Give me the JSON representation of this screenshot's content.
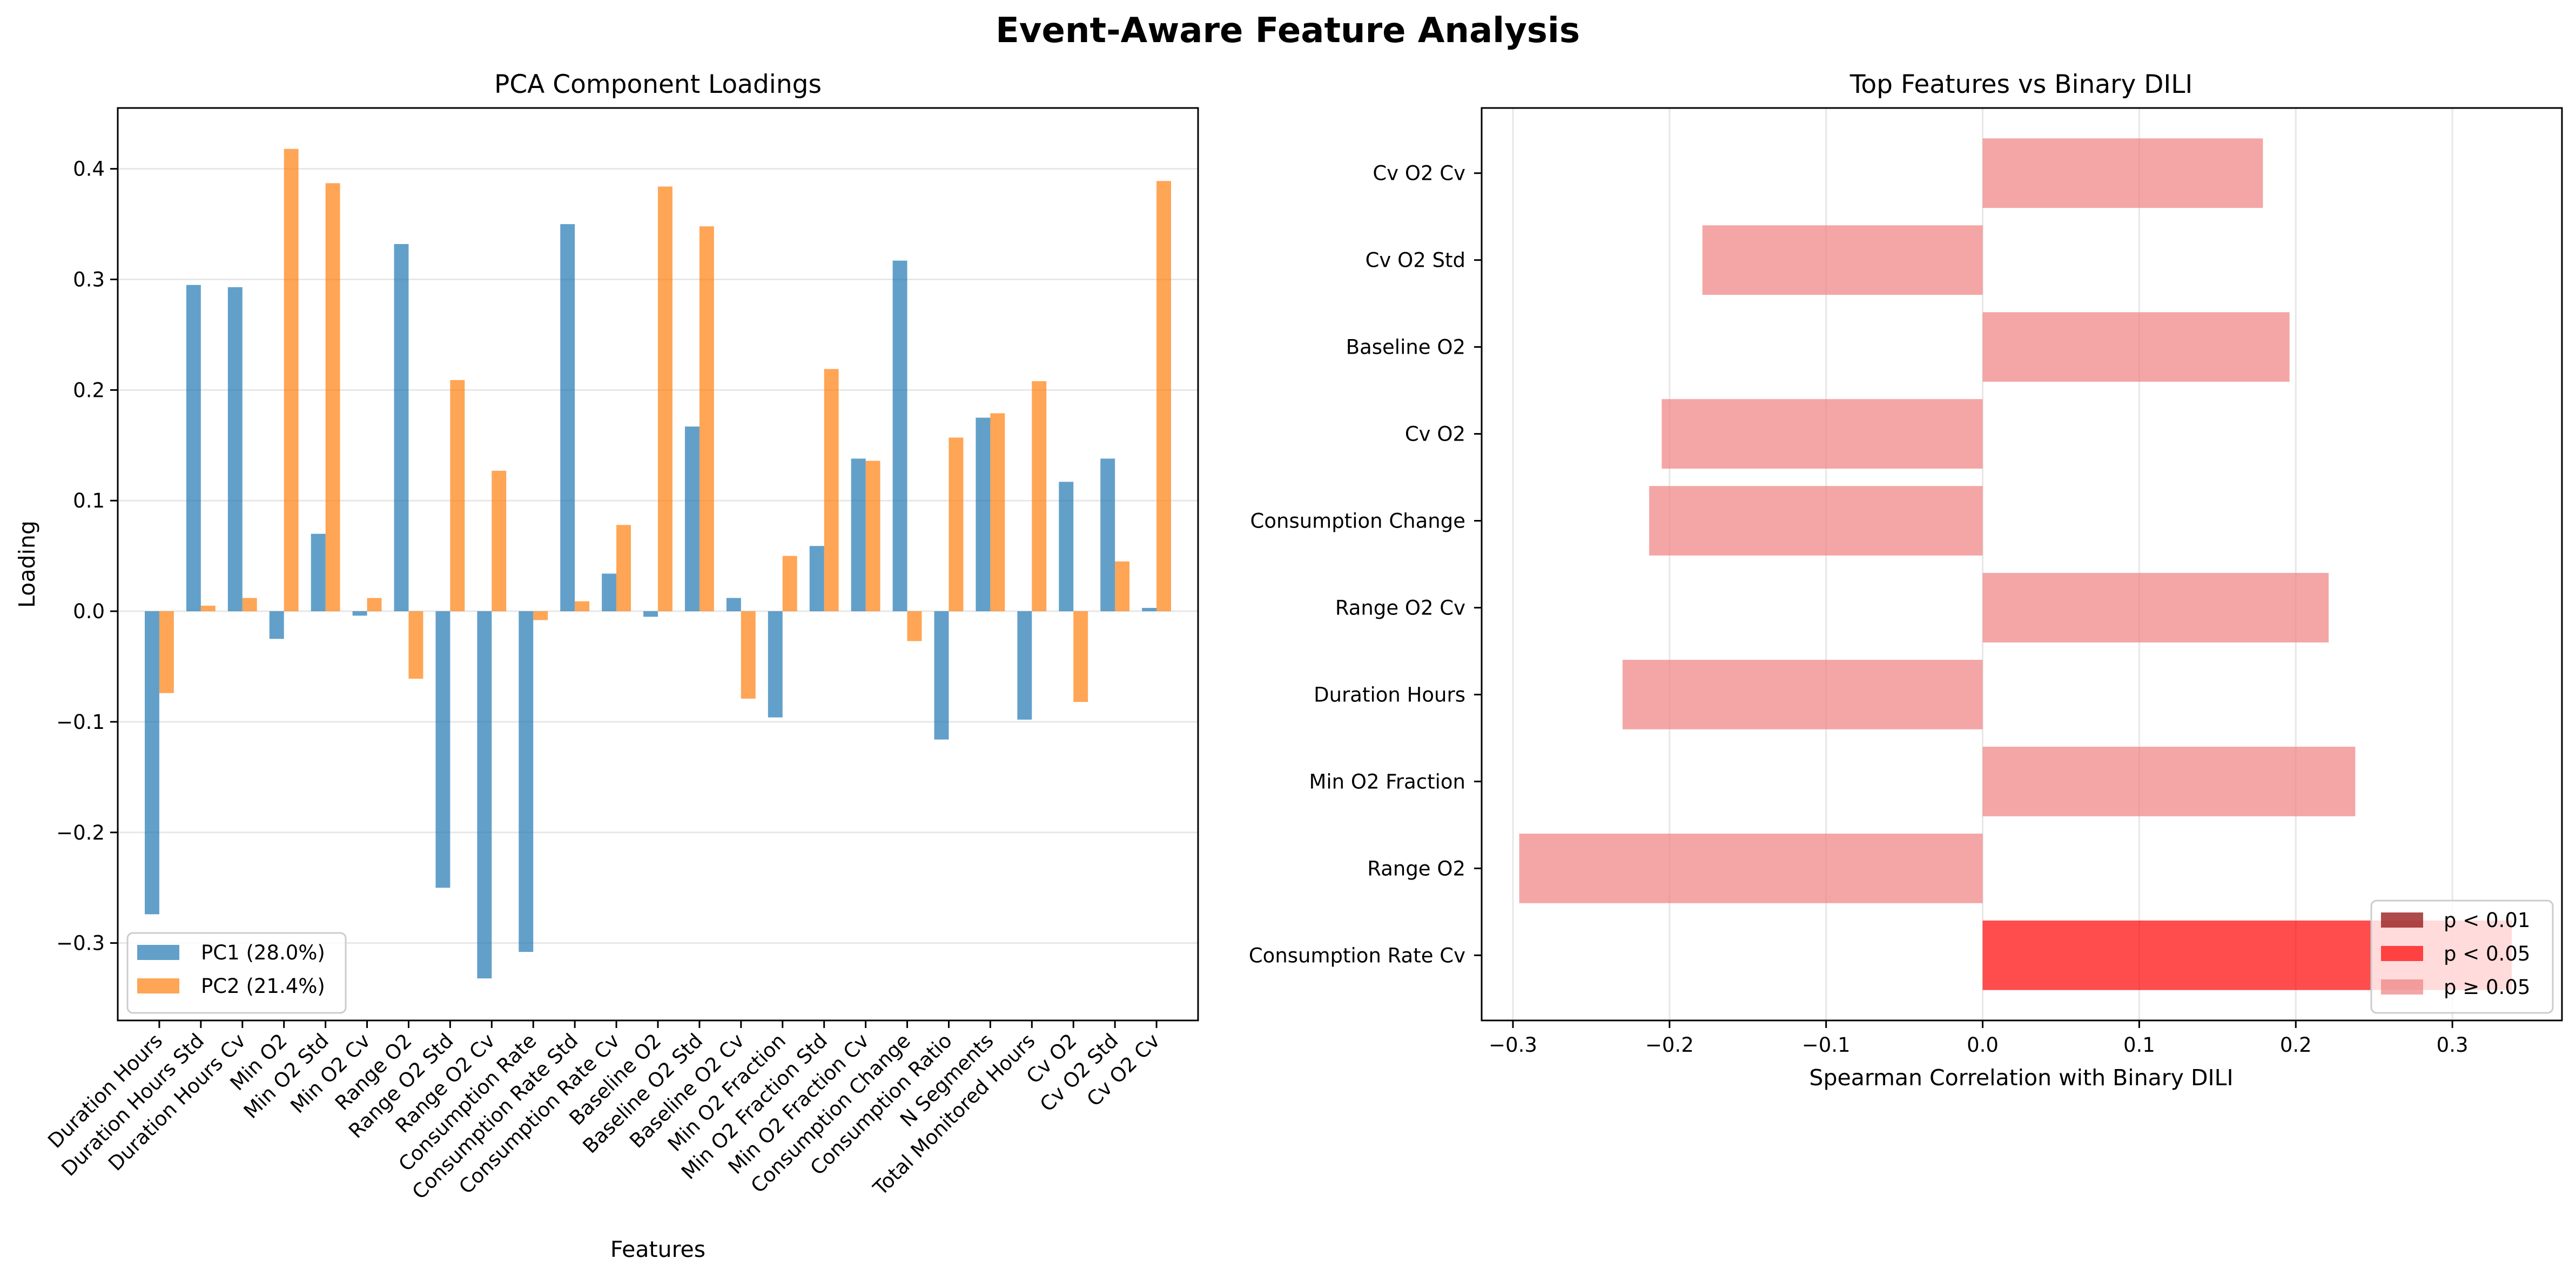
{
  "figure": {
    "title": "Event-Aware Feature Analysis"
  },
  "chart_data": [
    {
      "type": "bar",
      "title": "PCA Component Loadings",
      "xlabel": "Features",
      "ylabel": "Loading",
      "ylim": [
        -0.37,
        0.455
      ],
      "yticks": [
        -0.3,
        -0.2,
        -0.1,
        0.0,
        0.1,
        0.2,
        0.3,
        0.4
      ],
      "ytick_labels": [
        "−0.3",
        "−0.2",
        "−0.1",
        "0.0",
        "0.1",
        "0.2",
        "0.3",
        "0.4"
      ],
      "grid": "horizontal",
      "legend_position": "lower-left",
      "categories": [
        "Duration Hours",
        "Duration Hours Std",
        "Duration Hours Cv",
        "Min O2",
        "Min O2 Std",
        "Min O2 Cv",
        "Range O2",
        "Range O2 Std",
        "Range O2 Cv",
        "Consumption Rate",
        "Consumption Rate Std",
        "Consumption Rate Cv",
        "Baseline O2",
        "Baseline O2 Std",
        "Baseline O2 Cv",
        "Min O2 Fraction",
        "Min O2 Fraction Std",
        "Min O2 Fraction Cv",
        "Consumption Change",
        "Consumption Ratio",
        "N Segments",
        "Total Monitored Hours",
        "Cv O2",
        "Cv O2 Std",
        "Cv O2 Cv"
      ],
      "series": [
        {
          "name": "PC1 (28.0%)",
          "color": "#1f77b4",
          "values": [
            -0.274,
            0.295,
            0.293,
            -0.025,
            0.07,
            -0.004,
            0.332,
            -0.25,
            -0.332,
            -0.308,
            0.35,
            0.034,
            -0.005,
            0.167,
            0.012,
            -0.096,
            0.059,
            0.138,
            0.317,
            -0.116,
            0.175,
            -0.098,
            0.117,
            0.138,
            0.003
          ]
        },
        {
          "name": "PC2 (21.4%)",
          "color": "#ff7f0e",
          "values": [
            -0.074,
            0.005,
            0.012,
            0.418,
            0.387,
            0.012,
            -0.061,
            0.209,
            0.127,
            -0.008,
            0.009,
            0.078,
            0.384,
            0.348,
            -0.079,
            0.05,
            0.219,
            0.136,
            -0.027,
            0.157,
            0.179,
            0.208,
            -0.082,
            0.045,
            0.389
          ]
        }
      ]
    },
    {
      "type": "bar",
      "orientation": "horizontal",
      "title": "Top Features vs Binary DILI",
      "xlabel": "Spearman Correlation with Binary DILI",
      "ylabel": "",
      "xlim": [
        -0.32,
        0.37
      ],
      "xticks": [
        -0.3,
        -0.2,
        -0.1,
        0.0,
        0.1,
        0.2,
        0.3
      ],
      "xtick_labels": [
        "−0.3",
        "−0.2",
        "−0.1",
        "0.0",
        "0.1",
        "0.2",
        "0.3"
      ],
      "grid": "vertical",
      "legend_position": "lower-right",
      "categories": [
        "Cv O2 Cv",
        "Cv O2 Std",
        "Baseline O2",
        "Cv O2",
        "Consumption Change",
        "Range O2 Cv",
        "Duration Hours",
        "Min O2 Fraction",
        "Range O2",
        "Consumption Rate Cv"
      ],
      "values": [
        0.179,
        -0.179,
        0.196,
        -0.205,
        -0.213,
        0.221,
        -0.23,
        0.238,
        -0.296,
        0.338
      ],
      "significance": [
        "ns",
        "ns",
        "ns",
        "ns",
        "ns",
        "ns",
        "ns",
        "ns",
        "ns",
        "p05"
      ],
      "legend": [
        {
          "key": "p01",
          "label": "p < 0.01",
          "color": "#8b0000"
        },
        {
          "key": "p05",
          "label": "p < 0.05",
          "color": "#ff0000"
        },
        {
          "key": "ns",
          "label": "p ≥ 0.05",
          "color": "#f08080"
        }
      ]
    }
  ]
}
